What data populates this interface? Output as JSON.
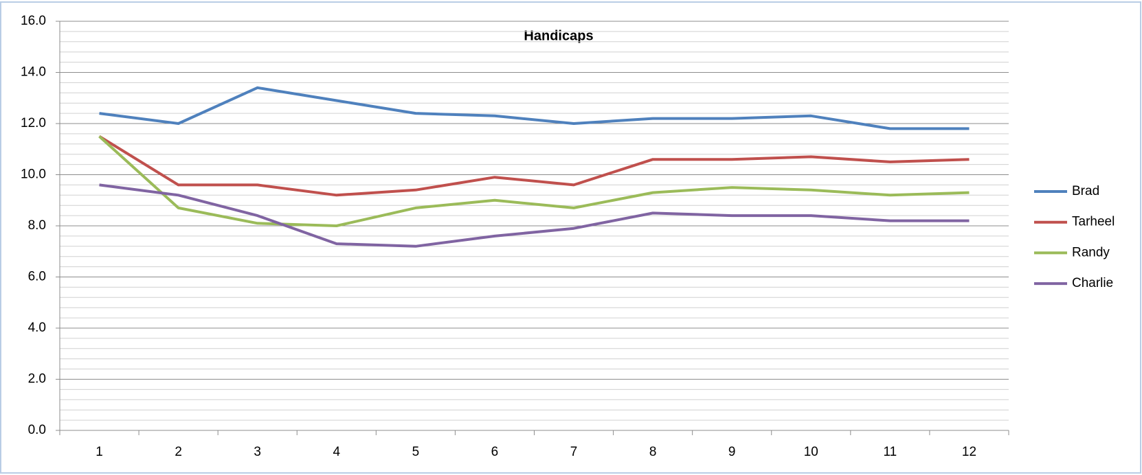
{
  "chart_data": {
    "type": "line",
    "title": "Handicaps",
    "categories": [
      "1",
      "2",
      "3",
      "4",
      "5",
      "6",
      "7",
      "8",
      "9",
      "10",
      "11",
      "12"
    ],
    "series": [
      {
        "name": "Brad",
        "color": "#4f81bd",
        "values": [
          12.4,
          12.0,
          13.4,
          12.9,
          12.4,
          12.3,
          12.0,
          12.2,
          12.2,
          12.3,
          11.8,
          11.8
        ]
      },
      {
        "name": "Tarheel",
        "color": "#c0504d",
        "values": [
          11.5,
          9.6,
          9.6,
          9.2,
          9.4,
          9.9,
          9.6,
          10.6,
          10.6,
          10.7,
          10.5,
          10.6
        ]
      },
      {
        "name": "Randy",
        "color": "#9bbb59",
        "values": [
          11.5,
          8.7,
          8.1,
          8.0,
          8.7,
          9.0,
          8.7,
          9.3,
          9.5,
          9.4,
          9.2,
          9.3
        ]
      },
      {
        "name": "Charlie",
        "color": "#8064a2",
        "values": [
          9.6,
          9.2,
          8.4,
          7.3,
          7.2,
          7.6,
          7.9,
          8.5,
          8.4,
          8.4,
          8.2,
          8.2
        ]
      }
    ],
    "ylim": [
      0,
      16
    ],
    "yticks": [
      {
        "value": 0,
        "label": "0.0"
      },
      {
        "value": 2,
        "label": "2.0"
      },
      {
        "value": 4,
        "label": "4.0"
      },
      {
        "value": 6,
        "label": "6.0"
      },
      {
        "value": 8,
        "label": "8.0"
      },
      {
        "value": 10,
        "label": "10.0"
      },
      {
        "value": 12,
        "label": "12.0"
      },
      {
        "value": 14,
        "label": "14.0"
      },
      {
        "value": 16,
        "label": "16.0"
      }
    ],
    "grid": true,
    "legend": "right"
  }
}
